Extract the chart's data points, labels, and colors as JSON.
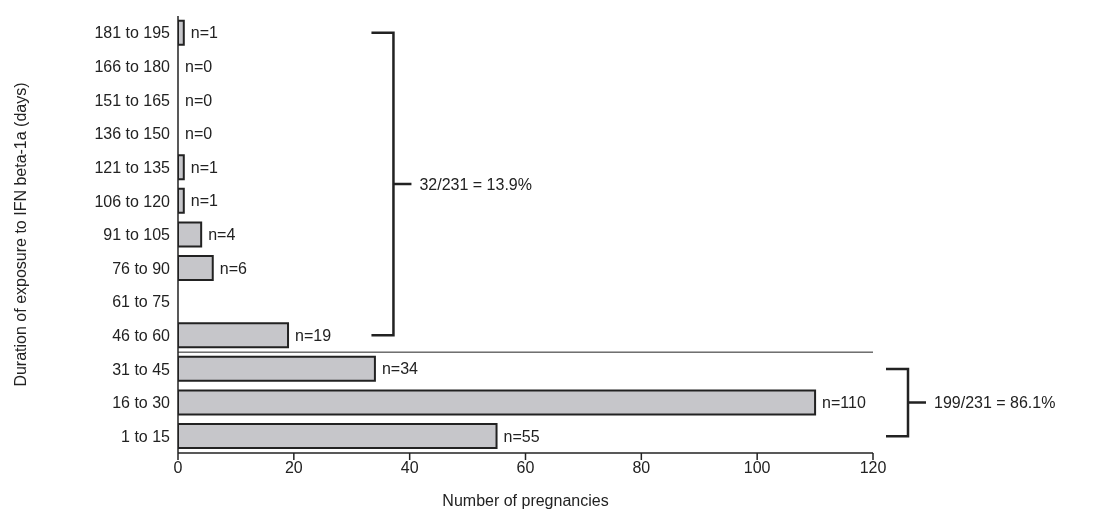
{
  "chart_data": {
    "type": "bar",
    "orientation": "horizontal",
    "xlabel": "Number of pregnancies",
    "ylabel": "Duration of exposure to IFN beta-1a (days)",
    "categories": [
      "181 to 195",
      "166 to 180",
      "151 to 165",
      "136 to 150",
      "121 to 135",
      "106 to 120",
      "91 to 105",
      "76 to 90",
      "61 to 75",
      "46 to 60",
      "31 to 45",
      "16 to 30",
      "1 to 15"
    ],
    "values": [
      1,
      0,
      0,
      0,
      1,
      1,
      4,
      6,
      0,
      19,
      34,
      110,
      55
    ],
    "value_labels": [
      "n=1",
      "n=0",
      "n=0",
      "n=0",
      "n=1",
      "n=1",
      "n=4",
      "n=6",
      null,
      "n=19",
      "n=34",
      "n=110",
      "n=55"
    ],
    "color": "#c6c6ca",
    "xlim": [
      0,
      120
    ],
    "xticks": [
      0,
      20,
      40,
      60,
      80,
      100,
      120
    ],
    "annotations": [
      "32/231 = 13.9%",
      "199/231 = 86.1%"
    ]
  }
}
